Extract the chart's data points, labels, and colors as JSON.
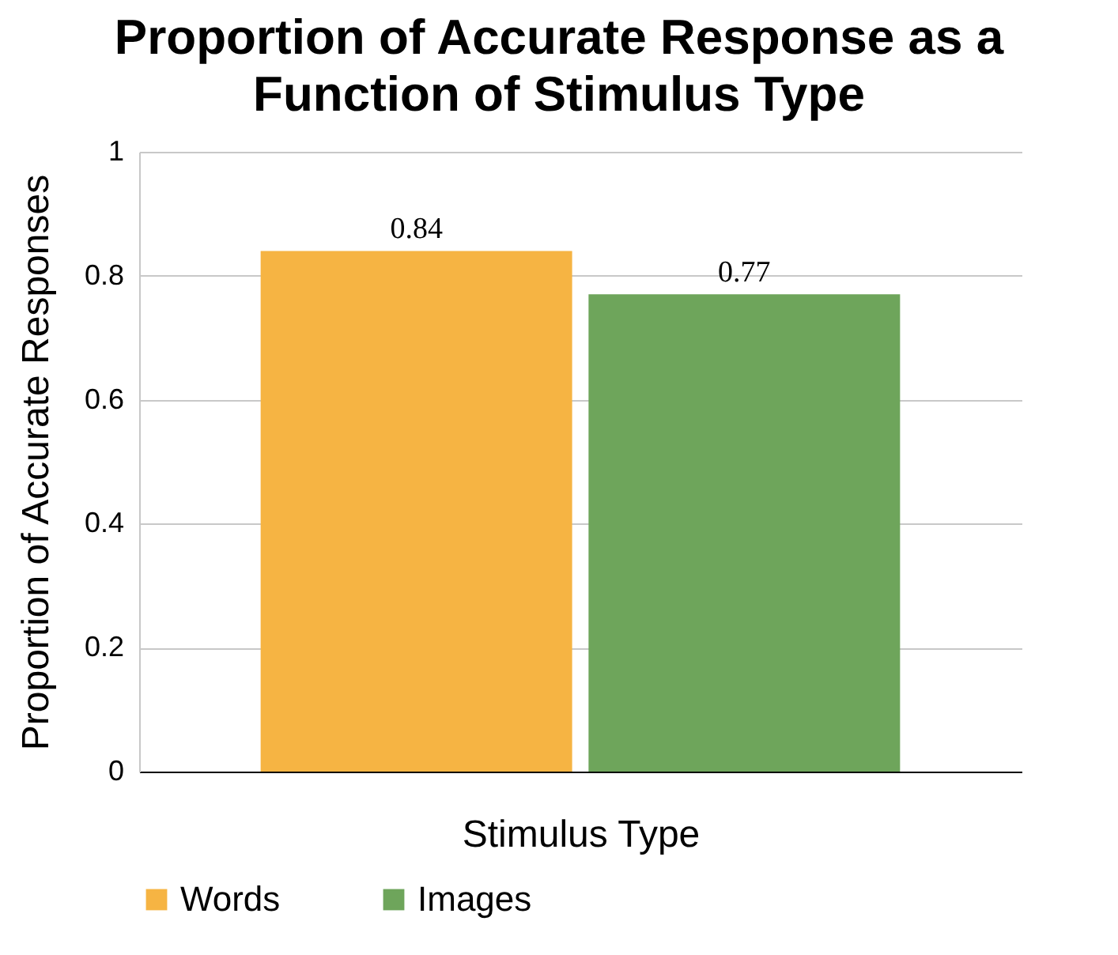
{
  "chart_data": {
    "type": "bar",
    "title": "Proportion of Accurate Response as a Function of Stimulus Type",
    "xlabel": "Stimulus Type",
    "ylabel": "Proportion of Accurate Responses",
    "categories": [
      null
    ],
    "series": [
      {
        "name": "Words",
        "color": "#f6b443",
        "values": [
          0.84
        ]
      },
      {
        "name": "Images",
        "color": "#6ea55b",
        "values": [
          0.77
        ]
      }
    ],
    "ylim": [
      0,
      1
    ],
    "yticks": [
      0,
      0.2,
      0.4,
      0.6,
      0.8,
      1
    ],
    "grid": "y",
    "legend": "bottom",
    "data_labels": true,
    "tick_labels": "y"
  }
}
